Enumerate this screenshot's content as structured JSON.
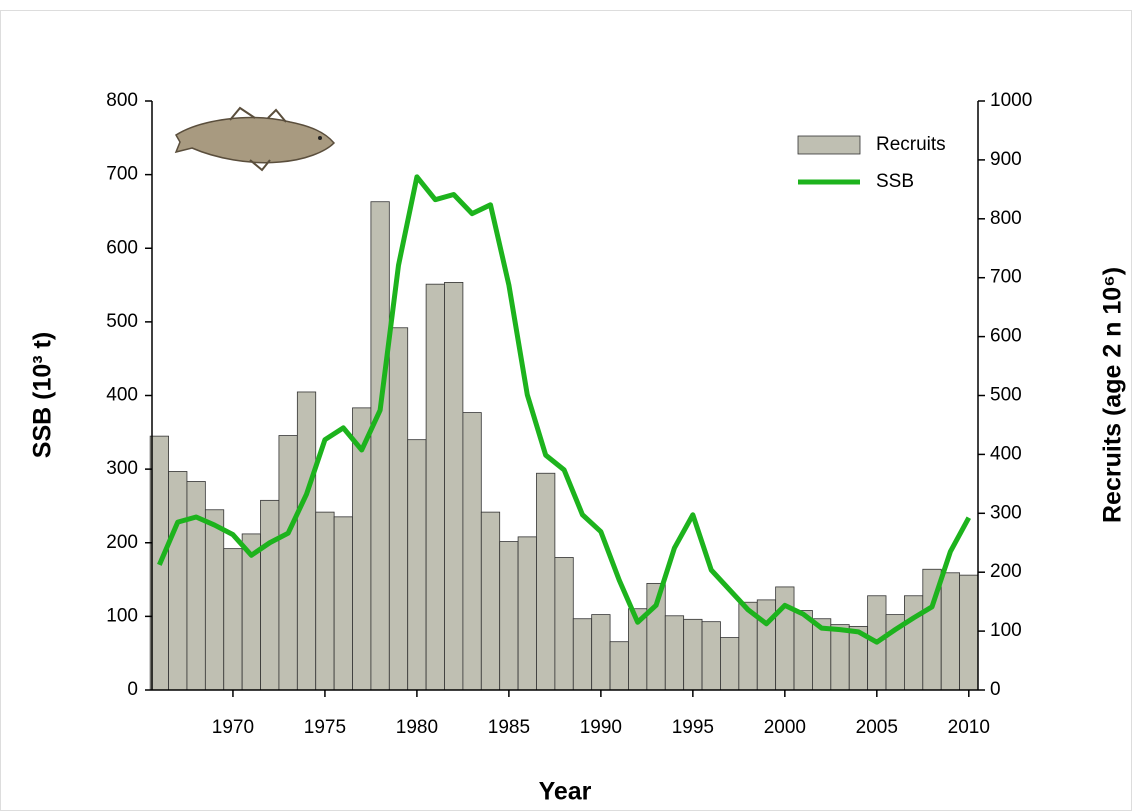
{
  "chart_data": {
    "type": "bar-line",
    "xlabel": "Year",
    "ylabel": "SSB (10³ t)",
    "y2label": "Recruits (age 2 n 10⁶)",
    "x": [
      1966,
      1967,
      1968,
      1969,
      1970,
      1971,
      1972,
      1973,
      1974,
      1975,
      1976,
      1977,
      1978,
      1979,
      1980,
      1981,
      1982,
      1983,
      1984,
      1985,
      1986,
      1987,
      1988,
      1989,
      1990,
      1991,
      1992,
      1993,
      1994,
      1995,
      1996,
      1997,
      1998,
      1999,
      2000,
      2001,
      2002,
      2003,
      2004,
      2005,
      2006,
      2007,
      2008,
      2009,
      2010
    ],
    "series": [
      {
        "name": "Recruits",
        "type": "bar",
        "axis": "y2",
        "color": "#bfbfb2",
        "values": [
          431,
          371,
          354,
          306,
          240,
          265,
          322,
          432,
          506,
          302,
          294,
          479,
          829,
          615,
          425,
          689,
          692,
          471,
          302,
          252,
          260,
          368,
          225,
          121,
          128,
          82,
          138,
          181,
          126,
          120,
          116,
          89,
          149,
          153,
          175,
          135,
          121,
          111,
          108,
          160,
          128,
          160,
          205,
          199,
          195
        ]
      },
      {
        "name": "SSB",
        "type": "line",
        "color": "#1db31d",
        "values": [
          170,
          228,
          235,
          224,
          211,
          183,
          200,
          213,
          266,
          340,
          356,
          326,
          380,
          577,
          697,
          666,
          673,
          647,
          659,
          550,
          401,
          319,
          299,
          238,
          215,
          149,
          92,
          115,
          193,
          238,
          163,
          136,
          109,
          90,
          115,
          103,
          84,
          82,
          79,
          65,
          82,
          98,
          113,
          188,
          234
        ]
      }
    ],
    "xlim": [
      1965.6,
      2010.5
    ],
    "xticks": [
      1970,
      1975,
      1980,
      1985,
      1990,
      1995,
      2000,
      2005,
      2010
    ],
    "ylim": [
      0,
      800
    ],
    "yticks": [
      0,
      100,
      200,
      300,
      400,
      500,
      600,
      700,
      800
    ],
    "y2lim": [
      0,
      1000
    ],
    "y2ticks": [
      0,
      100,
      200,
      300,
      400,
      500,
      600,
      700,
      800,
      900,
      1000
    ],
    "legend": "upper-right"
  }
}
